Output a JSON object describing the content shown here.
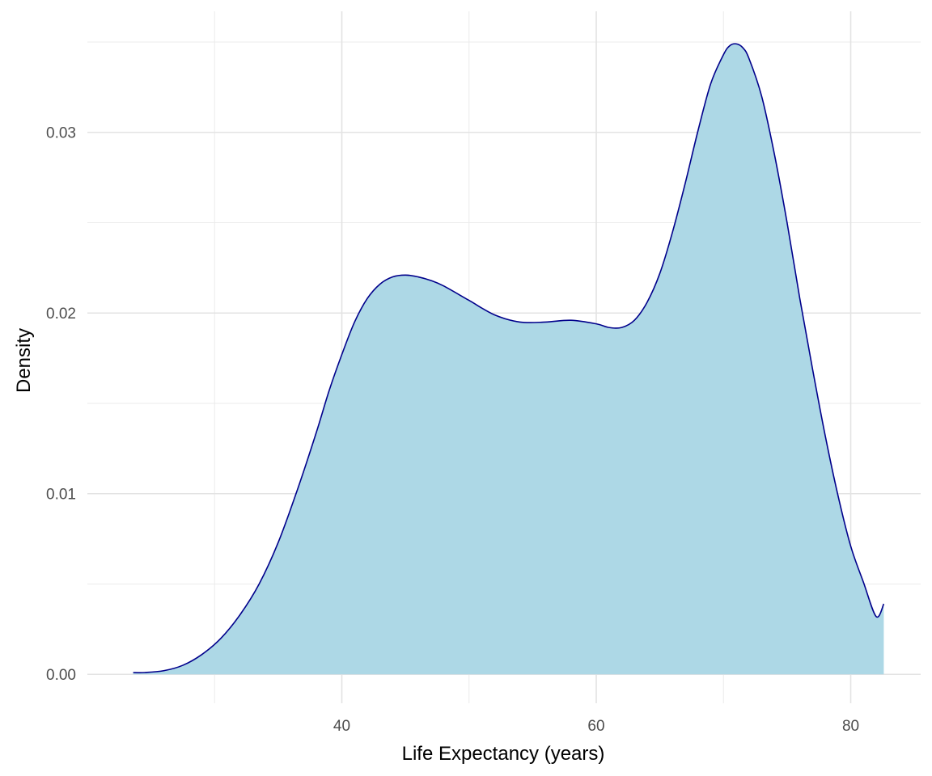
{
  "chart_data": {
    "type": "area",
    "xlabel": "Life Expectancy (years)",
    "ylabel": "Density",
    "xlim": [
      20.0,
      85.5
    ],
    "ylim": [
      -0.0016,
      0.0367
    ],
    "x_ticks": [
      40,
      60,
      80
    ],
    "y_ticks": [
      0.0,
      0.01,
      0.02,
      0.03
    ],
    "x_tick_labels": [
      "40",
      "60",
      "80"
    ],
    "y_tick_labels": [
      "0.00",
      "0.01",
      "0.02",
      "0.03"
    ],
    "grid": true,
    "legend": "none",
    "fill_color": "#add8e6",
    "line_color": "#00008b",
    "series": [
      {
        "x": [
          23.6,
          24.5,
          26.0,
          27.5,
          29.0,
          30.5,
          32.0,
          33.5,
          35.0,
          36.5,
          38.0,
          39.0,
          40.0,
          41.0,
          42.0,
          43.0,
          44.0,
          45.0,
          46.0,
          47.0,
          48.0,
          50.0,
          52.0,
          54.0,
          56.0,
          58.0,
          60.0,
          61.0,
          62.0,
          63.0,
          64.0,
          65.0,
          66.0,
          67.0,
          68.0,
          69.0,
          70.0,
          70.5,
          71.0,
          71.5,
          72.0,
          73.0,
          74.0,
          75.0,
          76.0,
          77.0,
          78.0,
          79.0,
          80.0,
          81.0,
          82.0,
          82.6
        ],
        "y": [
          0.0001,
          0.0001,
          0.0002,
          0.0005,
          0.0011,
          0.002,
          0.0033,
          0.005,
          0.0073,
          0.0102,
          0.0134,
          0.0157,
          0.0177,
          0.0195,
          0.0208,
          0.0216,
          0.022,
          0.0221,
          0.022,
          0.0218,
          0.0215,
          0.0207,
          0.0199,
          0.0195,
          0.0195,
          0.0196,
          0.0194,
          0.0192,
          0.0192,
          0.0196,
          0.0206,
          0.0222,
          0.0245,
          0.0272,
          0.0301,
          0.0327,
          0.0343,
          0.0348,
          0.0349,
          0.0347,
          0.0341,
          0.032,
          0.0288,
          0.025,
          0.0208,
          0.0169,
          0.0132,
          0.0099,
          0.0071,
          0.0051,
          0.0032,
          0.0039
        ]
      }
    ]
  }
}
